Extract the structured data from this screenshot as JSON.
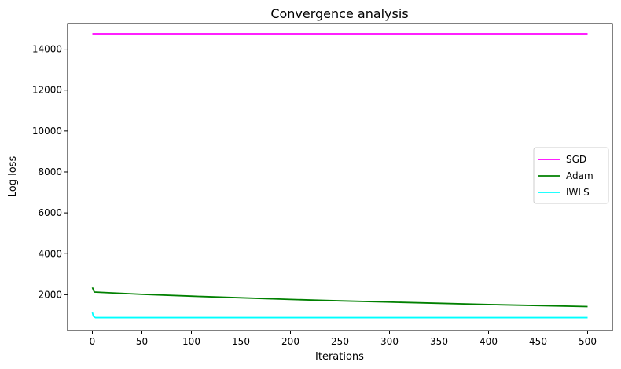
{
  "chart_data": {
    "type": "line",
    "title": "Convergence analysis",
    "xlabel": "Iterations",
    "ylabel": "Log loss",
    "xlim": [
      -25,
      525
    ],
    "ylim": [
      250,
      15250
    ],
    "xticks": [
      0,
      50,
      100,
      150,
      200,
      250,
      300,
      350,
      400,
      450,
      500
    ],
    "yticks": [
      2000,
      4000,
      6000,
      8000,
      10000,
      12000,
      14000
    ],
    "grid": false,
    "legend_position": "center-right",
    "series": [
      {
        "name": "SGD",
        "color": "#ff00ff",
        "x": [
          0,
          100,
          200,
          300,
          400,
          500
        ],
        "y": [
          14750,
          14750,
          14750,
          14750,
          14750,
          14750
        ]
      },
      {
        "name": "Adam",
        "color": "#008000",
        "x": [
          0,
          2,
          10,
          50,
          100,
          150,
          200,
          250,
          300,
          350,
          400,
          450,
          500
        ],
        "y": [
          2350,
          2130,
          2110,
          2020,
          1930,
          1850,
          1770,
          1700,
          1640,
          1580,
          1520,
          1470,
          1420
        ]
      },
      {
        "name": "IWLS",
        "color": "#00ffff",
        "x": [
          0,
          1,
          3,
          10,
          100,
          200,
          300,
          400,
          500
        ],
        "y": [
          1130,
          950,
          880,
          880,
          880,
          880,
          880,
          880,
          880
        ]
      }
    ]
  }
}
